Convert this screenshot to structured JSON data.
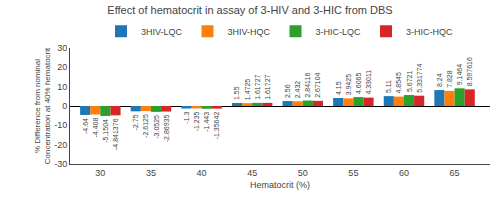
{
  "chart_data": {
    "type": "bar",
    "title": "Effect of hematocrit in assay of 3-HIV and 3-HIC from DBS",
    "xlabel": "Hematocrit (%)",
    "ylabel": "% Difference from nominal\nConcentration at 40% hematocrit",
    "x": [
      30,
      35,
      40,
      45,
      50,
      55,
      60,
      65
    ],
    "series": [
      {
        "name": "3HIV-LQC",
        "values": [
          -4.64,
          -2.75,
          -1.3,
          1.55,
          2.56,
          4.15,
          5.11,
          8.24
        ]
      },
      {
        "name": "3HIV-HQC",
        "values": [
          -4.408,
          -2.6125,
          -1.235,
          1.4725,
          2.432,
          3.9425,
          4.8545,
          7.828
        ]
      },
      {
        "name": "3-HIC-LQC",
        "values": [
          -5.1504,
          -3.0525,
          -1.443,
          1.61727,
          2.84116,
          4.6065,
          5.6721,
          9.1464
        ]
      },
      {
        "name": "3-HIC-HQC",
        "values": [
          -4.841376,
          -2.86935,
          -1.35642,
          1.61727,
          2.67104,
          4.33011,
          5.331774,
          8.597616
        ]
      }
    ],
    "xlim": [
      27,
      68.5
    ],
    "xticks": [
      30,
      35,
      40,
      45,
      50,
      55,
      60,
      65
    ],
    "ylim": [
      -30,
      30
    ],
    "yticks": [
      -30,
      -20,
      -10,
      0,
      10,
      20,
      30
    ],
    "grid": false,
    "data_labels": true,
    "legend": "top"
  }
}
